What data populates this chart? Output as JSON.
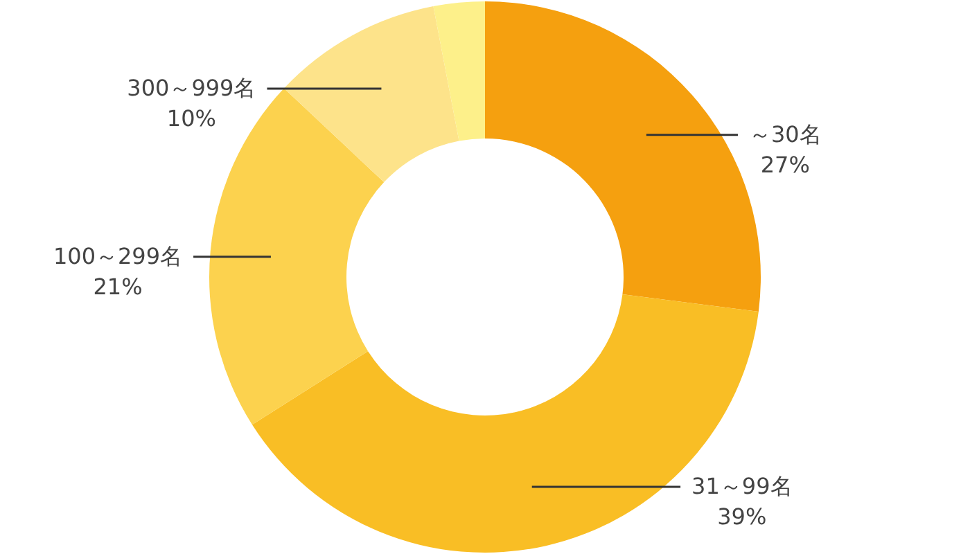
{
  "chart_data": {
    "type": "donut",
    "categories": [
      "～30名",
      "31～99名",
      "100～299名",
      "300～999名",
      null
    ],
    "values": [
      27,
      39,
      21,
      10,
      3
    ],
    "value_labels": [
      "27%",
      "39%",
      "21%",
      "10%",
      null
    ],
    "colors": [
      "#f5a00f",
      "#f9be25",
      "#fcd24e",
      "#fde38a",
      "#fdf08a"
    ]
  }
}
